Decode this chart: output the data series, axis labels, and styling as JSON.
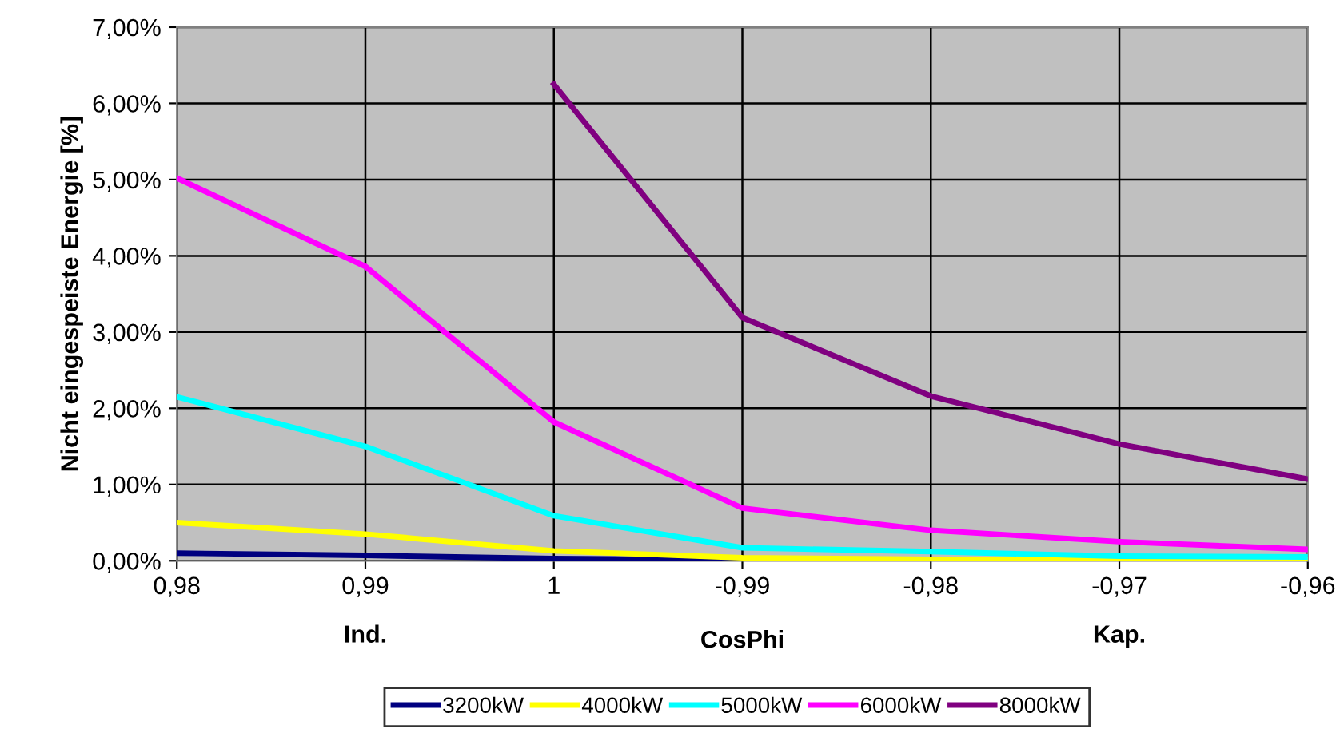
{
  "chart_data": {
    "type": "line",
    "xlabel": "CosPhi",
    "ylabel": "Nicht eingespeiste Energie [%]",
    "annotations": [
      "Ind.",
      "Kap."
    ],
    "categories": [
      "0,98",
      "0,99",
      "1",
      "-0,99",
      "-0,98",
      "-0,97",
      "-0,96"
    ],
    "series": [
      {
        "name": "3200kW",
        "color": "#000080",
        "values": [
          0.1,
          0.07,
          0.03,
          0.01,
          0.0,
          null,
          null
        ]
      },
      {
        "name": "4000kW",
        "color": "#ffff00",
        "values": [
          0.5,
          0.35,
          0.13,
          0.04,
          0.02,
          0.01,
          0.01
        ]
      },
      {
        "name": "5000kW",
        "color": "#00ffff",
        "values": [
          2.15,
          1.5,
          0.59,
          0.17,
          0.12,
          0.06,
          0.05
        ]
      },
      {
        "name": "6000kW",
        "color": "#ff00ff",
        "values": [
          5.02,
          3.86,
          1.82,
          0.69,
          0.4,
          0.25,
          0.15
        ]
      },
      {
        "name": "8000kW",
        "color": "#800080",
        "values": [
          null,
          null,
          6.25,
          3.19,
          2.16,
          1.53,
          1.07
        ]
      }
    ],
    "ylim": [
      0,
      7
    ],
    "yticks": [
      {
        "value": 0,
        "label": "0,00%"
      },
      {
        "value": 1,
        "label": "1,00%"
      },
      {
        "value": 2,
        "label": "2,00%"
      },
      {
        "value": 3,
        "label": "3,00%"
      },
      {
        "value": 4,
        "label": "4,00%"
      },
      {
        "value": 5,
        "label": "5,00%"
      },
      {
        "value": 6,
        "label": "6,00%"
      },
      {
        "value": 7,
        "label": "7,00%"
      }
    ],
    "grid": true,
    "legend": "bottom",
    "marker": "none",
    "line_style": "solid"
  }
}
